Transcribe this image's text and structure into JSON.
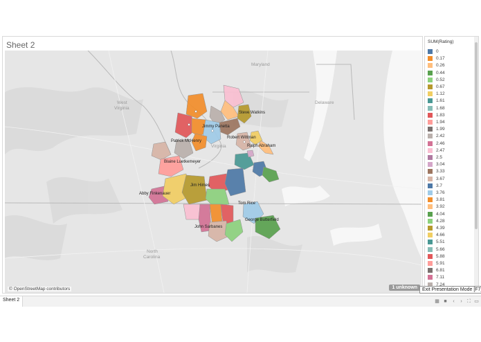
{
  "sheet": {
    "title": "Sheet 2"
  },
  "map": {
    "places": {
      "maryland": "Maryland",
      "delaware": "Delaware",
      "west_virginia_1": "West",
      "west_virginia_2": "Virginia",
      "virginia": "Virginia",
      "north_carolina_1": "North",
      "north_carolina_2": "Carolina"
    },
    "labels": {
      "steve_watkins": "Steve Watkins",
      "jimmy_panetta": "Jimmy Panetta",
      "robert_wittman": "Robert Wittman",
      "patrick_mchenry": "Patrick McHenry",
      "ralph_abraham": "Ralph Abraham",
      "blaine_luetkemeyer": "Blaine Luetkemeyer",
      "jim_himes": "Jim Himes",
      "abby_finkenauer": "Abby Finkenauer",
      "tom_rice": "Tom Rice",
      "george_butterfield": "George Butterfield",
      "john_sarbanes": "John Sarbanes"
    },
    "credit": "© OpenStreetMap contributors",
    "unknown_badge": "1 unknown"
  },
  "legend": {
    "title": "SUM(Rating)",
    "items": [
      {
        "label": "0",
        "color": "#4e79a7"
      },
      {
        "label": "0.17",
        "color": "#f28e2b"
      },
      {
        "label": "0.26",
        "color": "#ffbe7d"
      },
      {
        "label": "0.44",
        "color": "#59a14f"
      },
      {
        "label": "0.52",
        "color": "#8cd17d"
      },
      {
        "label": "0.67",
        "color": "#b6992d"
      },
      {
        "label": "1.12",
        "color": "#f1ce63"
      },
      {
        "label": "1.61",
        "color": "#499894"
      },
      {
        "label": "1.68",
        "color": "#86bcb6"
      },
      {
        "label": "1.83",
        "color": "#e15759"
      },
      {
        "label": "1.94",
        "color": "#ff9d9a"
      },
      {
        "label": "1.99",
        "color": "#79706e"
      },
      {
        "label": "2.42",
        "color": "#bab0ac"
      },
      {
        "label": "2.46",
        "color": "#d37295"
      },
      {
        "label": "2.47",
        "color": "#fabfd2"
      },
      {
        "label": "2.5",
        "color": "#b07aa1"
      },
      {
        "label": "3.04",
        "color": "#d4a6c8"
      },
      {
        "label": "3.33",
        "color": "#9d7660"
      },
      {
        "label": "3.67",
        "color": "#d7b5a6"
      },
      {
        "label": "3.7",
        "color": "#4e79a7"
      },
      {
        "label": "3.76",
        "color": "#a0cbe8"
      },
      {
        "label": "3.81",
        "color": "#f28e2b"
      },
      {
        "label": "3.92",
        "color": "#ffbe7d"
      },
      {
        "label": "4.04",
        "color": "#59a14f"
      },
      {
        "label": "4.28",
        "color": "#8cd17d"
      },
      {
        "label": "4.39",
        "color": "#b6992d"
      },
      {
        "label": "4.66",
        "color": "#f1ce63"
      },
      {
        "label": "5.51",
        "color": "#499894"
      },
      {
        "label": "5.66",
        "color": "#86bcb6"
      },
      {
        "label": "5.88",
        "color": "#e15759"
      },
      {
        "label": "5.91",
        "color": "#ff9d9a"
      },
      {
        "label": "6.81",
        "color": "#79706e"
      },
      {
        "label": "7.11",
        "color": "#d37295"
      },
      {
        "label": "7.24",
        "color": "#bab0ac"
      }
    ]
  },
  "bottom_bar": {
    "tab_label": "Sheet 2"
  },
  "tooltip": {
    "text": "Exit Presentation Mode [F7]"
  }
}
